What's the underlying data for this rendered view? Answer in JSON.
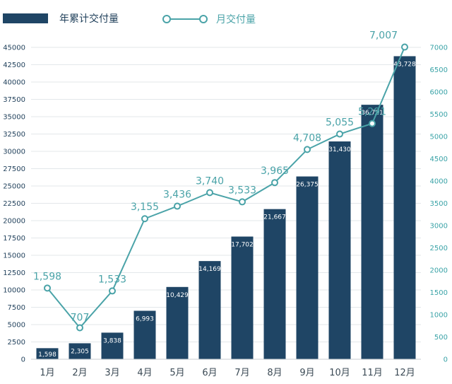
{
  "chart_data": {
    "type": "bar+line",
    "categories": [
      "1月",
      "2月",
      "3月",
      "4月",
      "5月",
      "6月",
      "7月",
      "8月",
      "9月",
      "10月",
      "11月",
      "12月"
    ],
    "series": [
      {
        "name": "年累计交付量",
        "type": "bar",
        "axis": "left",
        "values": [
          1598,
          2305,
          3838,
          6993,
          10429,
          14169,
          17702,
          21667,
          26375,
          31430,
          36721,
          43728
        ],
        "labels": [
          "1,598",
          "2,305",
          "3,838",
          "6,993",
          "10,429",
          "14,169",
          "17,702",
          "21,667",
          "26,375",
          "31,430",
          "36,721",
          "43,728"
        ],
        "color": "#1f4565"
      },
      {
        "name": "月交付量",
        "type": "line",
        "axis": "right",
        "values": [
          1598,
          707,
          1533,
          3155,
          3436,
          3740,
          3533,
          3965,
          4708,
          5055,
          5291,
          7007
        ],
        "labels": [
          "1,598",
          "707",
          "1,533",
          "3,155",
          "3,436",
          "3,740",
          "3,533",
          "3,965",
          "4,708",
          "5,055",
          "5,291",
          "7,007"
        ],
        "color": "#4aa3a8"
      }
    ],
    "left_axis": {
      "range": [
        0,
        45000
      ],
      "ticks": [
        "0",
        "2500",
        "5000",
        "7500",
        "10000",
        "12500",
        "15000",
        "17500",
        "20000",
        "22500",
        "25000",
        "27500",
        "30000",
        "32500",
        "35000",
        "37500",
        "40000",
        "42500",
        "45000"
      ]
    },
    "right_axis": {
      "range": [
        0,
        7000
      ],
      "ticks": [
        "0",
        "500",
        "1000",
        "1500",
        "2000",
        "2500",
        "3000",
        "3500",
        "4000",
        "4500",
        "5000",
        "5500",
        "6000",
        "6500",
        "7000"
      ]
    },
    "grid": "horizontal",
    "legend": "top-left"
  }
}
